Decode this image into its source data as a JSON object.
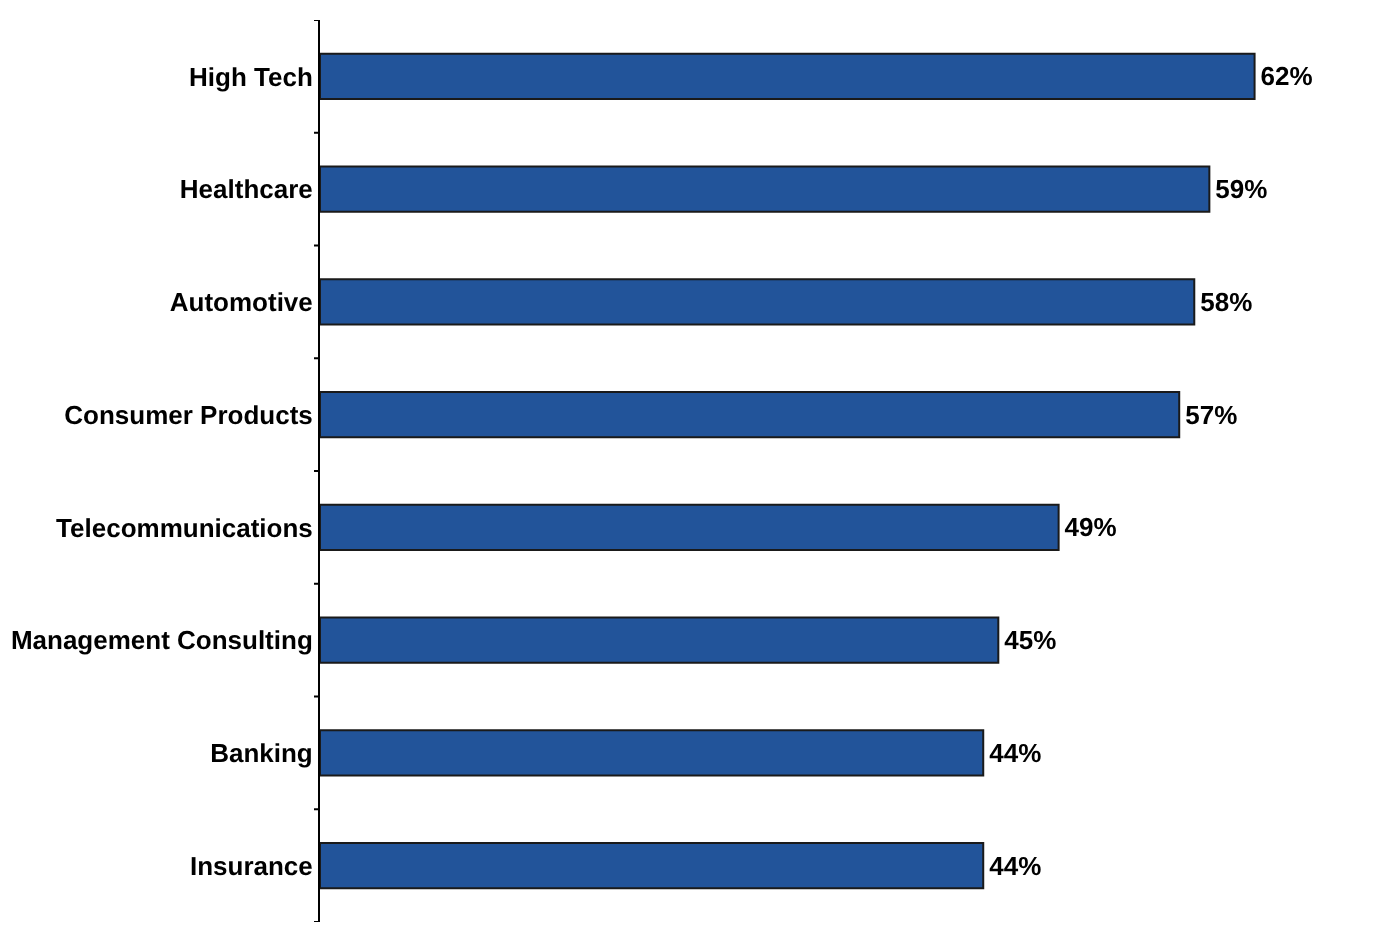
{
  "chart_data": {
    "type": "bar",
    "orientation": "horizontal",
    "categories": [
      "High Tech",
      "Healthcare",
      "Automotive",
      "Consumer Products",
      "Telecommunications",
      "Management Consulting",
      "Banking",
      "Insurance"
    ],
    "values": [
      62,
      59,
      58,
      57,
      49,
      45,
      44,
      44
    ],
    "value_labels": [
      "62%",
      "59%",
      "58%",
      "57%",
      "49%",
      "45%",
      "44%",
      "44%"
    ],
    "color": "#22549a"
  }
}
